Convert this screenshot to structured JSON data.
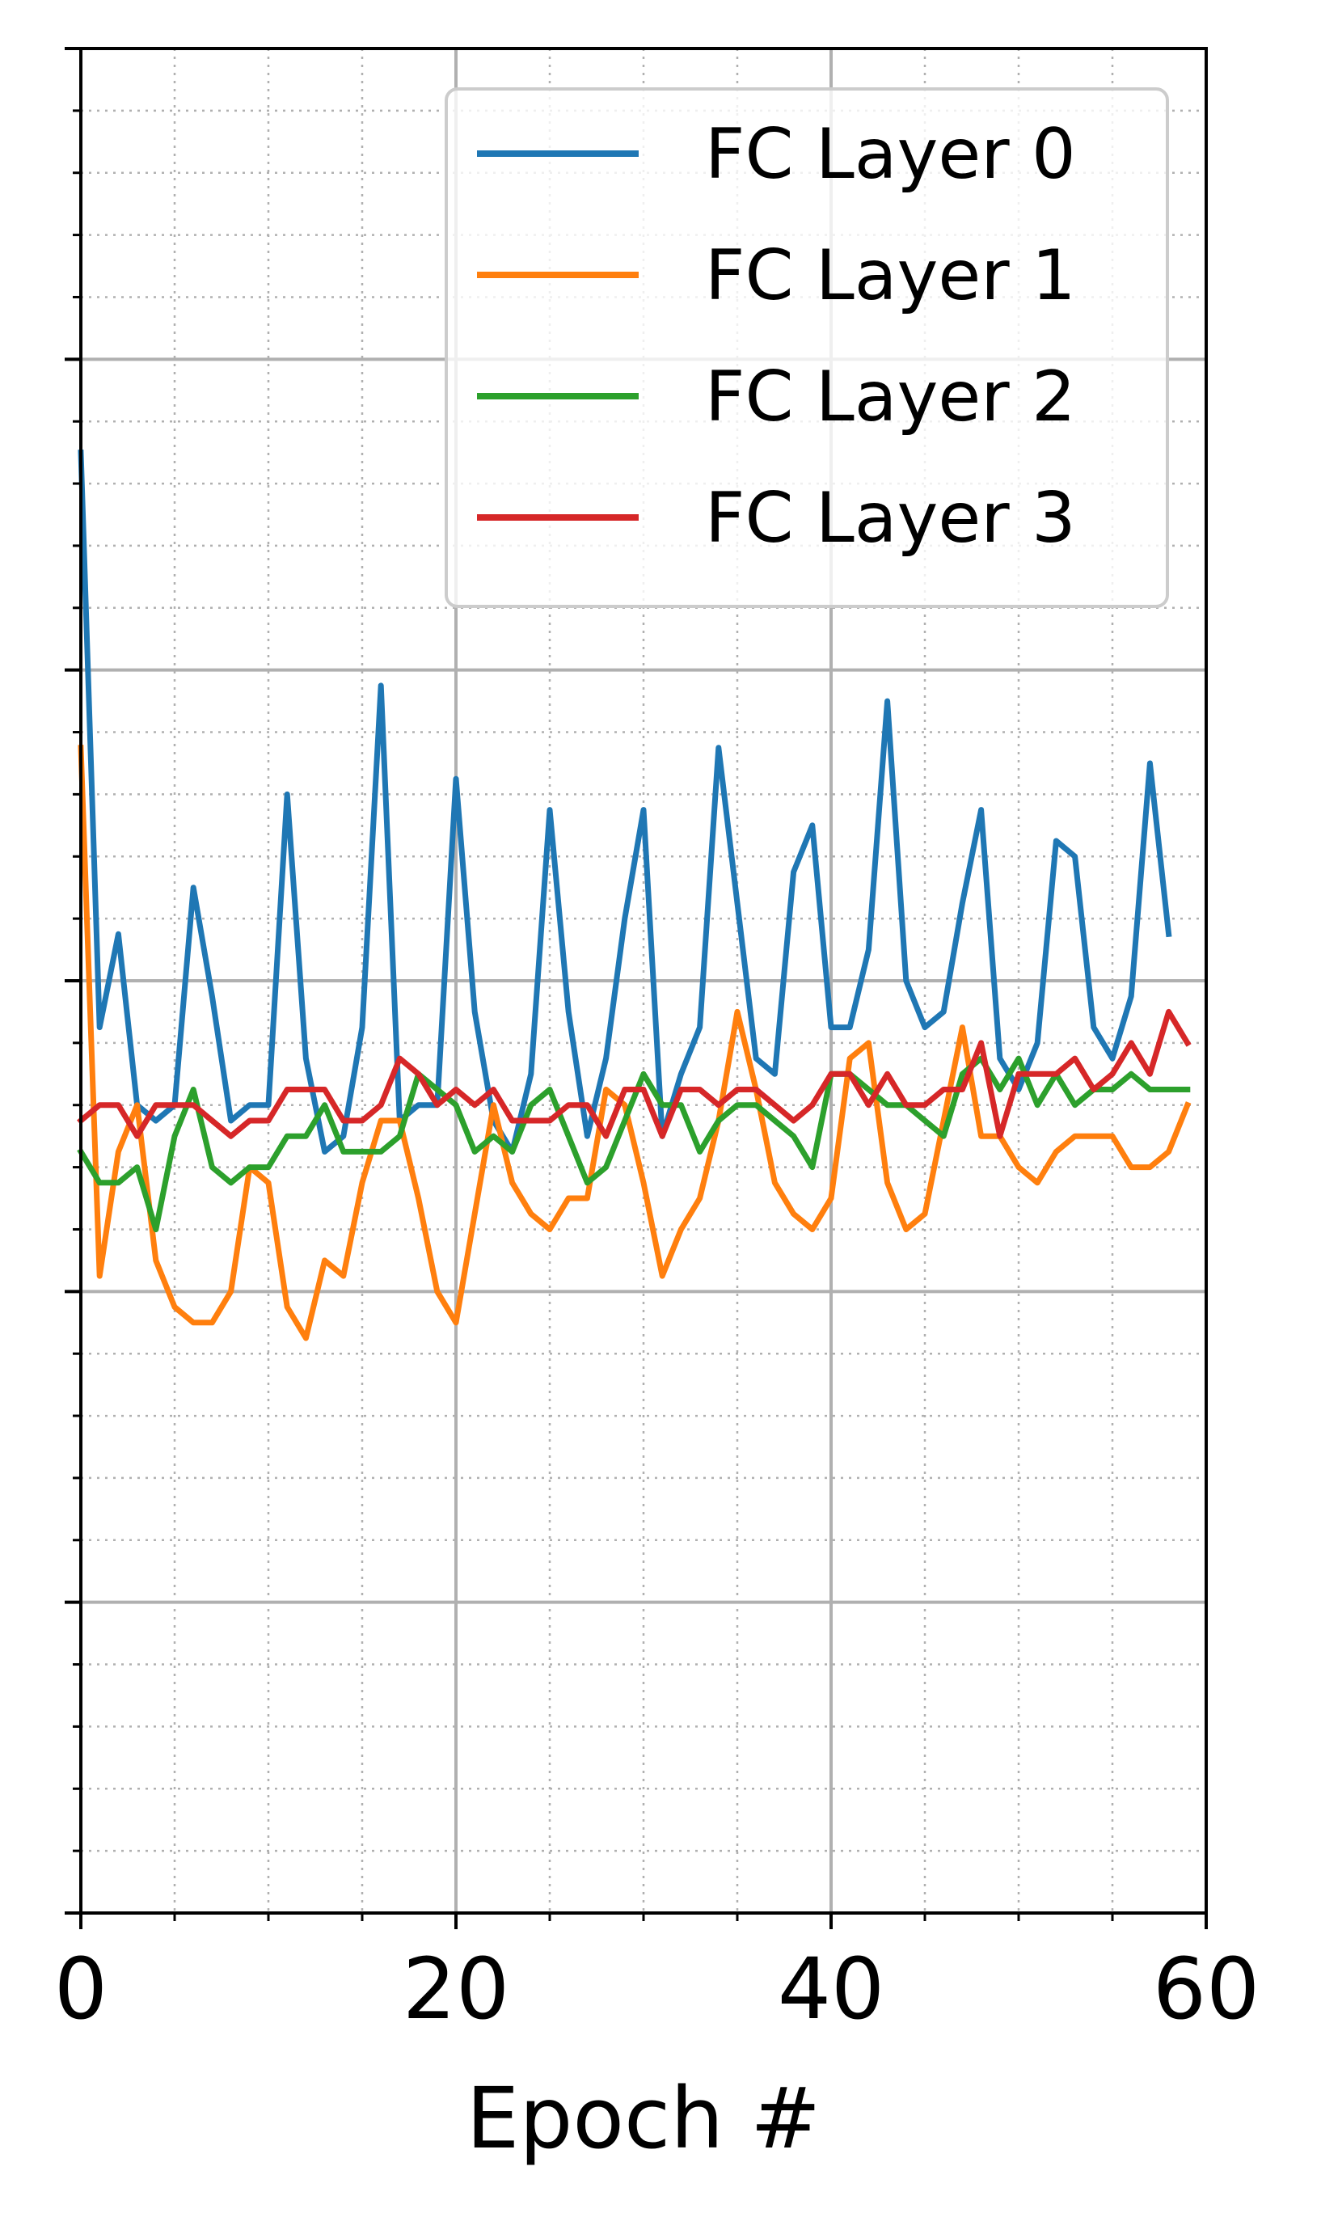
{
  "chart_data": {
    "type": "line",
    "title": "",
    "xlabel": "Epoch #",
    "ylabel": "",
    "xlim": [
      0,
      60
    ],
    "ylim": [
      -6,
      6
    ],
    "x_ticks": [
      0,
      20,
      40,
      60
    ],
    "x_tick_labels": [
      "0",
      "20",
      "40",
      "60"
    ],
    "x_minor_step": 5,
    "y_major_step": 2,
    "y_minor_step": 0.4,
    "grid": true,
    "legend_position": "top-right",
    "colors": {
      "grid_major": "#b0b0b0",
      "grid_minor": "#b0b0b0",
      "axis": "#000000"
    },
    "series": [
      {
        "name": "FC Layer 0",
        "color": "#1f77b4",
        "x": [
          0,
          1,
          2,
          3,
          4,
          5,
          6,
          7,
          8,
          9,
          10,
          11,
          12,
          13,
          14,
          15,
          16,
          17,
          18,
          19,
          20,
          21,
          22,
          23,
          24,
          25,
          26,
          27,
          28,
          29,
          30,
          31,
          32,
          33,
          34,
          35,
          36,
          37,
          38,
          39,
          40,
          41,
          42,
          43,
          44,
          45,
          46,
          47,
          48,
          49,
          50,
          51,
          52,
          53,
          54,
          55,
          56,
          57,
          58
        ],
        "y": [
          3.4,
          -0.3,
          0.3,
          -0.8,
          -0.9,
          -0.8,
          0.6,
          -0.1,
          -0.9,
          -0.8,
          -0.8,
          1.2,
          -0.5,
          -1.1,
          -1.0,
          -0.3,
          1.9,
          -0.9,
          -0.8,
          -0.8,
          1.3,
          -0.2,
          -0.9,
          -1.1,
          -0.6,
          1.1,
          -0.2,
          -1.0,
          -0.5,
          0.4,
          1.1,
          -1.0,
          -0.6,
          -0.3,
          1.5,
          0.5,
          -0.5,
          -0.6,
          0.7,
          1.0,
          -0.3,
          -0.3,
          0.2,
          1.8,
          0.0,
          -0.3,
          -0.2,
          0.5,
          1.1,
          -0.5,
          -0.7,
          -0.4,
          0.9,
          0.8,
          -0.3,
          -0.5,
          -0.1,
          1.4,
          0.3
        ]
      },
      {
        "name": "FC Layer 1",
        "color": "#ff7f0e",
        "x": [
          0,
          1,
          2,
          3,
          4,
          5,
          6,
          7,
          8,
          9,
          10,
          11,
          12,
          13,
          14,
          15,
          16,
          17,
          18,
          19,
          20,
          21,
          22,
          23,
          24,
          25,
          26,
          27,
          28,
          29,
          30,
          31,
          32,
          33,
          34,
          35,
          36,
          37,
          38,
          39,
          40,
          41,
          42,
          43,
          44,
          45,
          46,
          47,
          48,
          49,
          50,
          51,
          52,
          53,
          54,
          55,
          56,
          57,
          58,
          59
        ],
        "y": [
          1.5,
          -1.9,
          -1.1,
          -0.8,
          -1.8,
          -2.1,
          -2.2,
          -2.2,
          -2.0,
          -1.2,
          -1.3,
          -2.1,
          -2.3,
          -1.8,
          -1.9,
          -1.3,
          -0.9,
          -0.9,
          -1.4,
          -2.0,
          -2.2,
          -1.5,
          -0.8,
          -1.3,
          -1.5,
          -1.6,
          -1.4,
          -1.4,
          -0.7,
          -0.8,
          -1.3,
          -1.9,
          -1.6,
          -1.4,
          -0.9,
          -0.2,
          -0.7,
          -1.3,
          -1.5,
          -1.6,
          -1.4,
          -0.5,
          -0.4,
          -1.3,
          -1.6,
          -1.5,
          -0.9,
          -0.3,
          -1.0,
          -1.0,
          -1.2,
          -1.3,
          -1.1,
          -1.0,
          -1.0,
          -1.0,
          -1.2,
          -1.2,
          -1.1,
          -0.8
        ]
      },
      {
        "name": "FC Layer 2",
        "color": "#2ca02c",
        "x": [
          0,
          1,
          2,
          3,
          4,
          5,
          6,
          7,
          8,
          9,
          10,
          11,
          12,
          13,
          14,
          15,
          16,
          17,
          18,
          19,
          20,
          21,
          22,
          23,
          24,
          25,
          26,
          27,
          28,
          29,
          30,
          31,
          32,
          33,
          34,
          35,
          36,
          37,
          38,
          39,
          40,
          41,
          42,
          43,
          44,
          45,
          46,
          47,
          48,
          49,
          50,
          51,
          52,
          53,
          54,
          55,
          56,
          57,
          58,
          59
        ],
        "y": [
          -1.1,
          -1.3,
          -1.3,
          -1.2,
          -1.6,
          -1.0,
          -0.7,
          -1.2,
          -1.3,
          -1.2,
          -1.2,
          -1.0,
          -1.0,
          -0.8,
          -1.1,
          -1.1,
          -1.1,
          -1.0,
          -0.6,
          -0.7,
          -0.8,
          -1.1,
          -1.0,
          -1.1,
          -0.8,
          -0.7,
          -1.0,
          -1.3,
          -1.2,
          -0.9,
          -0.6,
          -0.8,
          -0.8,
          -1.1,
          -0.9,
          -0.8,
          -0.8,
          -0.9,
          -1.0,
          -1.2,
          -0.6,
          -0.6,
          -0.7,
          -0.8,
          -0.8,
          -0.9,
          -1.0,
          -0.6,
          -0.5,
          -0.7,
          -0.5,
          -0.8,
          -0.6,
          -0.8,
          -0.7,
          -0.7,
          -0.6,
          -0.7,
          -0.7,
          -0.7
        ]
      },
      {
        "name": "FC Layer 3",
        "color": "#d62728",
        "x": [
          0,
          1,
          2,
          3,
          4,
          5,
          6,
          7,
          8,
          9,
          10,
          11,
          12,
          13,
          14,
          15,
          16,
          17,
          18,
          19,
          20,
          21,
          22,
          23,
          24,
          25,
          26,
          27,
          28,
          29,
          30,
          31,
          32,
          33,
          34,
          35,
          36,
          37,
          38,
          39,
          40,
          41,
          42,
          43,
          44,
          45,
          46,
          47,
          48,
          49,
          50,
          51,
          52,
          53,
          54,
          55,
          56,
          57,
          58,
          59
        ],
        "y": [
          -0.9,
          -0.8,
          -0.8,
          -1.0,
          -0.8,
          -0.8,
          -0.8,
          -0.9,
          -1.0,
          -0.9,
          -0.9,
          -0.7,
          -0.7,
          -0.7,
          -0.9,
          -0.9,
          -0.8,
          -0.5,
          -0.6,
          -0.8,
          -0.7,
          -0.8,
          -0.7,
          -0.9,
          -0.9,
          -0.9,
          -0.8,
          -0.8,
          -1.0,
          -0.7,
          -0.7,
          -1.0,
          -0.7,
          -0.7,
          -0.8,
          -0.7,
          -0.7,
          -0.8,
          -0.9,
          -0.8,
          -0.6,
          -0.6,
          -0.8,
          -0.6,
          -0.8,
          -0.8,
          -0.7,
          -0.7,
          -0.4,
          -1.0,
          -0.6,
          -0.6,
          -0.6,
          -0.5,
          -0.7,
          -0.6,
          -0.4,
          -0.6,
          -0.2,
          -0.4
        ]
      }
    ]
  }
}
